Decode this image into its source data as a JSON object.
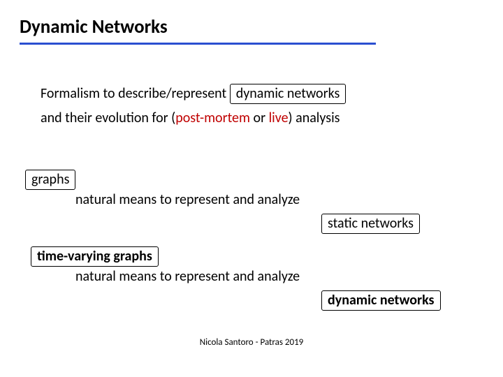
{
  "title": "Dynamic Networks",
  "colors": {
    "rule": "#2a4fd0",
    "red": "#c00000",
    "text": "#000000",
    "bg": "#ffffff"
  },
  "p1_prefix": "Formalism to describe/represent ",
  "p1_box": "dynamic networks",
  "p2_a": "and their evolution for  (",
  "p2_pm": "post-mortem",
  "p2_b": " or ",
  "p2_live": "live",
  "p2_c": ") analysis",
  "box_graphs": "graphs",
  "l_means": "natural means to represent and analyze",
  "box_static": "static networks",
  "box_tvg": "time-varying graphs",
  "box_dyn": "dynamic networks",
  "footer": "Nicola Santoro - Patras 2019",
  "fontsizes": {
    "title": 27,
    "body": 20,
    "footer": 13
  }
}
